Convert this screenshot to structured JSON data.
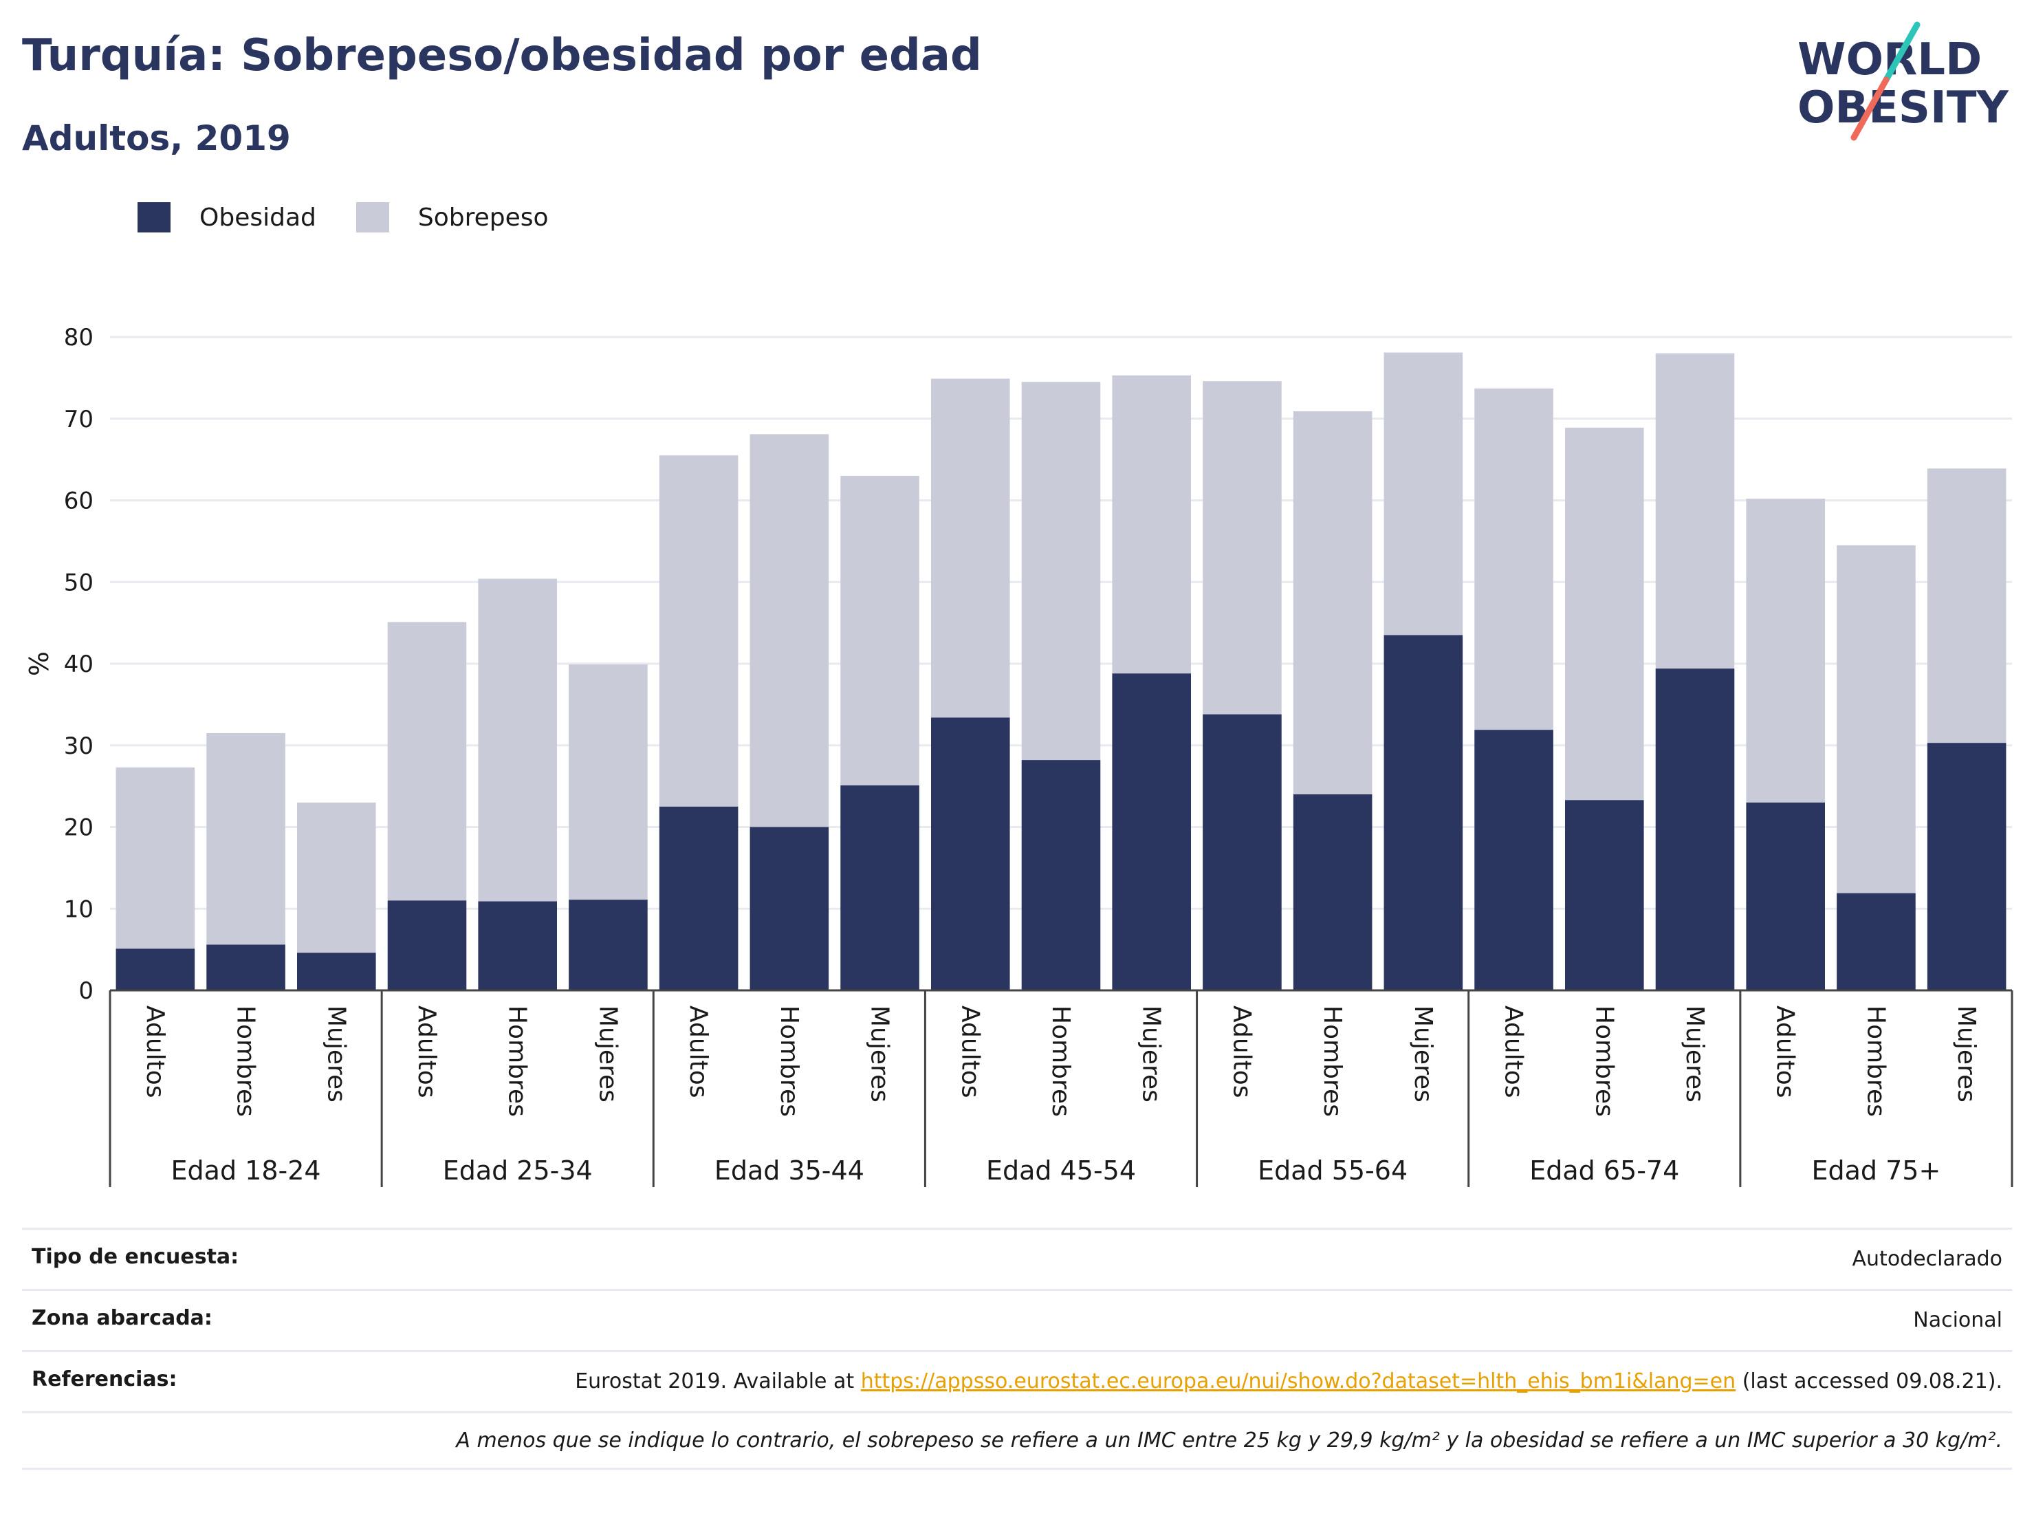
{
  "header": {
    "title": "Turquía: Sobrepeso/obesidad por edad",
    "subtitle": "Adultos, 2019",
    "logo_line1": "WORLD",
    "logo_line2": "OBESITY"
  },
  "colors": {
    "obesity": "#2a3560",
    "overweight": "#c9ccd8",
    "grid": "#e8eaf0",
    "link": "#e8a000",
    "logo_teal": "#2cc5b8",
    "logo_coral": "#ee6b5b"
  },
  "chart_data": {
    "type": "bar",
    "stacked": true,
    "title": "",
    "xlabel": "",
    "ylabel": "%",
    "ylim": [
      0,
      80
    ],
    "yticks": [
      0,
      10,
      20,
      30,
      40,
      50,
      60,
      70,
      80
    ],
    "grid": true,
    "legend_position": "top-left",
    "groups": [
      "Edad 18-24",
      "Edad 25-34",
      "Edad 35-44",
      "Edad 45-54",
      "Edad 55-64",
      "Edad 65-74",
      "Edad 75+"
    ],
    "subcategories": [
      "Adultos",
      "Hombres",
      "Mujeres"
    ],
    "series": [
      {
        "name": "Obesidad",
        "values": [
          5.1,
          5.6,
          4.6,
          11.0,
          10.9,
          11.1,
          22.5,
          20.0,
          25.1,
          33.4,
          28.2,
          38.8,
          33.8,
          24.0,
          43.5,
          31.9,
          23.3,
          39.4,
          23.0,
          11.9,
          30.3
        ]
      },
      {
        "name": "Sobrepeso",
        "values": [
          22.2,
          25.9,
          18.4,
          34.1,
          39.5,
          28.8,
          43.0,
          48.1,
          37.9,
          41.5,
          46.3,
          36.5,
          40.8,
          46.9,
          34.6,
          41.8,
          45.6,
          38.6,
          37.2,
          42.6,
          33.6
        ]
      }
    ]
  },
  "info": {
    "rows": [
      {
        "key": "Tipo de encuesta:",
        "value": "Autodeclarado"
      },
      {
        "key": "Zona abarcada:",
        "value": "Nacional"
      }
    ],
    "references_key": "Referencias:",
    "references_prefix": "Eurostat 2019. Available at",
    "references_link": "https://appsso.eurostat.ec.europa.eu/nui/show.do?dataset=hlth_ehis_bm1i&lang=en",
    "references_suffix": "(last accessed 09.08.21).",
    "note": "A menos que se indique lo contrario, el sobrepeso se refiere a un IMC entre 25 kg y 29,9 kg/m² y la obesidad se refiere a un IMC superior a 30 kg/m²."
  }
}
